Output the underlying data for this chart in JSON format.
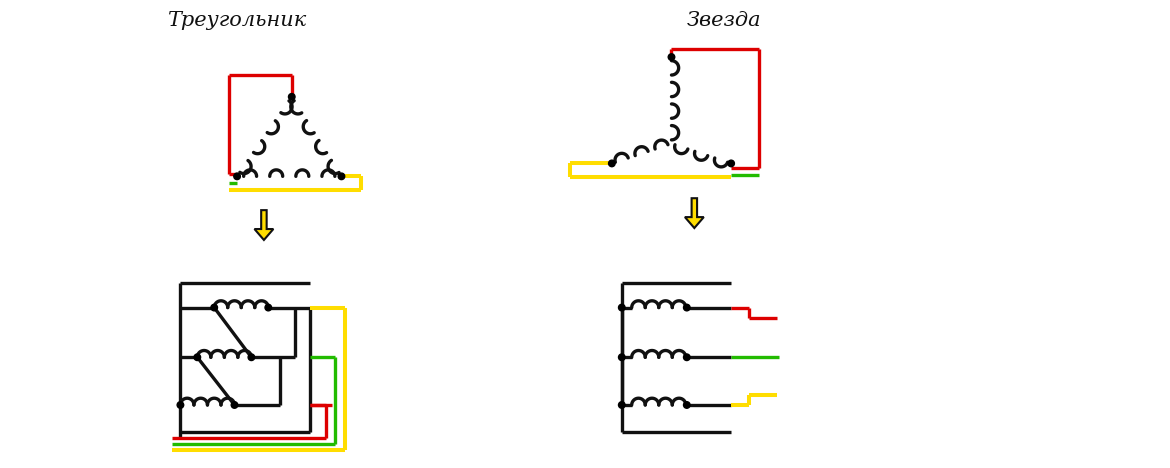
{
  "title_left": "Треугольник",
  "title_right": "Звезда",
  "bg_color": "#ffffff",
  "red": "#dd0000",
  "green": "#22bb00",
  "yellow": "#ffdd00",
  "black": "#111111",
  "lw": 2.4
}
